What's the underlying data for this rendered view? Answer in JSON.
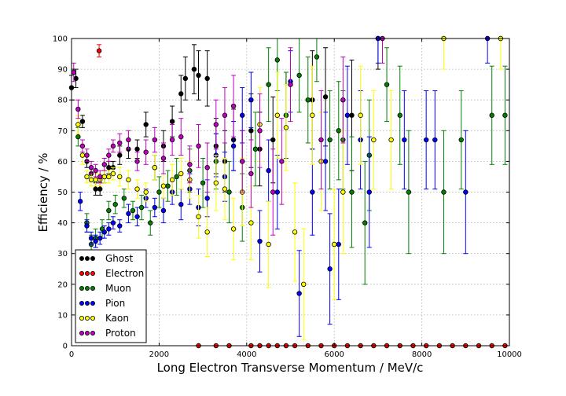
{
  "chart_data": {
    "type": "scatter",
    "xlabel": "Long Electron Transverse Momentum / MeV/c",
    "ylabel": "Efficiency / %",
    "xlim": [
      0,
      10000
    ],
    "ylim": [
      0,
      100
    ],
    "xticks": [
      0,
      2000,
      4000,
      6000,
      8000,
      10000
    ],
    "yticks": [
      0,
      10,
      20,
      30,
      40,
      50,
      60,
      70,
      80,
      90,
      100
    ],
    "grid": true,
    "legend_position": "lower-left",
    "error_bars": true,
    "series": [
      {
        "name": "Ghost",
        "color": "#000000",
        "points": [
          [
            0,
            84,
            4
          ],
          [
            100,
            87,
            3
          ],
          [
            250,
            73,
            2
          ],
          [
            350,
            60,
            2
          ],
          [
            450,
            56,
            2
          ],
          [
            550,
            51,
            2
          ],
          [
            650,
            51,
            2
          ],
          [
            750,
            55,
            2
          ],
          [
            850,
            58,
            2
          ],
          [
            950,
            58,
            2
          ],
          [
            1100,
            62,
            3
          ],
          [
            1300,
            64,
            3
          ],
          [
            1500,
            64,
            3
          ],
          [
            1700,
            72,
            4
          ],
          [
            1900,
            58,
            4
          ],
          [
            2100,
            65,
            5
          ],
          [
            2300,
            73,
            5
          ],
          [
            2500,
            82,
            6
          ],
          [
            2600,
            87,
            7
          ],
          [
            2800,
            90,
            8
          ],
          [
            2900,
            88,
            8
          ],
          [
            3100,
            87,
            9
          ],
          [
            3300,
            65,
            9
          ],
          [
            3500,
            60,
            10
          ],
          [
            3700,
            67,
            10
          ],
          [
            3900,
            60,
            10
          ],
          [
            4100,
            70,
            12
          ],
          [
            4300,
            64,
            12
          ],
          [
            4600,
            67,
            14
          ],
          [
            4900,
            75,
            14
          ],
          [
            5500,
            80,
            16
          ],
          [
            5800,
            81,
            16
          ],
          [
            6400,
            75,
            18
          ],
          [
            7000,
            100,
            10
          ]
        ]
      },
      {
        "name": "Electron",
        "color": "#ff0000",
        "points": [
          [
            630,
            96,
            2
          ],
          [
            2900,
            0,
            0
          ],
          [
            3300,
            0,
            0
          ],
          [
            3600,
            0,
            0
          ],
          [
            4100,
            0,
            0
          ],
          [
            4300,
            0,
            0
          ],
          [
            4500,
            0,
            0
          ],
          [
            4700,
            0,
            0
          ],
          [
            4900,
            0,
            0
          ],
          [
            5100,
            0,
            0
          ],
          [
            5400,
            0,
            0
          ],
          [
            5700,
            0,
            0
          ],
          [
            6000,
            0,
            0
          ],
          [
            6300,
            0,
            0
          ],
          [
            6600,
            0,
            0
          ],
          [
            6900,
            0,
            0
          ],
          [
            7200,
            0,
            0
          ],
          [
            7500,
            0,
            0
          ],
          [
            7800,
            0,
            0
          ],
          [
            8100,
            0,
            0
          ],
          [
            8400,
            0,
            0
          ],
          [
            8700,
            0,
            0
          ],
          [
            9000,
            0,
            0
          ],
          [
            9300,
            0,
            0
          ],
          [
            9600,
            0,
            0
          ],
          [
            9900,
            0,
            0
          ]
        ]
      },
      {
        "name": "Muon",
        "color": "#008000",
        "points": [
          [
            150,
            68,
            3
          ],
          [
            350,
            40,
            3
          ],
          [
            450,
            33,
            3
          ],
          [
            550,
            35,
            3
          ],
          [
            700,
            38,
            3
          ],
          [
            850,
            44,
            3
          ],
          [
            1000,
            46,
            3
          ],
          [
            1200,
            48,
            3
          ],
          [
            1400,
            44,
            3
          ],
          [
            1600,
            45,
            4
          ],
          [
            1800,
            40,
            4
          ],
          [
            2000,
            50,
            5
          ],
          [
            2200,
            52,
            5
          ],
          [
            2400,
            55,
            6
          ],
          [
            2700,
            57,
            7
          ],
          [
            3000,
            53,
            8
          ],
          [
            3300,
            60,
            9
          ],
          [
            3600,
            50,
            10
          ],
          [
            3900,
            45,
            11
          ],
          [
            4200,
            64,
            12
          ],
          [
            4500,
            85,
            12
          ],
          [
            4700,
            93,
            10
          ],
          [
            4900,
            75,
            14
          ],
          [
            5200,
            88,
            12
          ],
          [
            5400,
            80,
            14
          ],
          [
            5600,
            94,
            8
          ],
          [
            5900,
            67,
            16
          ],
          [
            6100,
            70,
            16
          ],
          [
            6200,
            67,
            16
          ],
          [
            6400,
            50,
            18
          ],
          [
            6700,
            40,
            20
          ],
          [
            6800,
            62,
            18
          ],
          [
            7200,
            85,
            12
          ],
          [
            7500,
            75,
            16
          ],
          [
            7700,
            50,
            20
          ],
          [
            8500,
            50,
            20
          ],
          [
            8900,
            67,
            16
          ],
          [
            9600,
            75,
            16
          ],
          [
            9900,
            75,
            16
          ]
        ]
      },
      {
        "name": "Pion",
        "color": "#0000ff",
        "points": [
          [
            200,
            47,
            3
          ],
          [
            350,
            39,
            2
          ],
          [
            450,
            35,
            2
          ],
          [
            550,
            34,
            2
          ],
          [
            650,
            35,
            2
          ],
          [
            750,
            37,
            2
          ],
          [
            850,
            38,
            2
          ],
          [
            950,
            40,
            2
          ],
          [
            1100,
            39,
            2
          ],
          [
            1300,
            43,
            3
          ],
          [
            1500,
            42,
            3
          ],
          [
            1700,
            48,
            3
          ],
          [
            1900,
            45,
            3
          ],
          [
            2100,
            44,
            4
          ],
          [
            2300,
            50,
            4
          ],
          [
            2500,
            46,
            5
          ],
          [
            2700,
            51,
            5
          ],
          [
            2900,
            45,
            6
          ],
          [
            3100,
            48,
            6
          ],
          [
            3300,
            62,
            7
          ],
          [
            3500,
            55,
            8
          ],
          [
            3700,
            65,
            8
          ],
          [
            3900,
            75,
            9
          ],
          [
            4100,
            80,
            9
          ],
          [
            4300,
            34,
            10
          ],
          [
            4500,
            57,
            10
          ],
          [
            4700,
            50,
            12
          ],
          [
            5000,
            86,
            10
          ],
          [
            5200,
            17,
            14
          ],
          [
            5500,
            50,
            14
          ],
          [
            5800,
            60,
            16
          ],
          [
            5900,
            25,
            18
          ],
          [
            6100,
            33,
            18
          ],
          [
            6300,
            75,
            16
          ],
          [
            6600,
            67,
            16
          ],
          [
            6800,
            50,
            18
          ],
          [
            7000,
            100,
            8
          ],
          [
            7600,
            67,
            16
          ],
          [
            8100,
            67,
            16
          ],
          [
            8300,
            67,
            16
          ],
          [
            9000,
            50,
            20
          ],
          [
            9500,
            100,
            8
          ]
        ]
      },
      {
        "name": "Kaon",
        "color": "#ffff00",
        "points": [
          [
            150,
            72,
            3
          ],
          [
            250,
            62,
            3
          ],
          [
            350,
            55,
            2
          ],
          [
            450,
            54,
            2
          ],
          [
            550,
            54,
            2
          ],
          [
            650,
            54,
            2
          ],
          [
            750,
            55,
            2
          ],
          [
            850,
            55,
            2
          ],
          [
            950,
            56,
            2
          ],
          [
            1100,
            55,
            3
          ],
          [
            1300,
            54,
            3
          ],
          [
            1500,
            51,
            3
          ],
          [
            1700,
            50,
            3
          ],
          [
            1900,
            58,
            4
          ],
          [
            2100,
            52,
            4
          ],
          [
            2300,
            54,
            5
          ],
          [
            2500,
            56,
            5
          ],
          [
            2700,
            54,
            6
          ],
          [
            2900,
            42,
            7
          ],
          [
            3100,
            37,
            8
          ],
          [
            3300,
            53,
            9
          ],
          [
            3500,
            51,
            10
          ],
          [
            3700,
            38,
            10
          ],
          [
            3900,
            50,
            11
          ],
          [
            4100,
            40,
            12
          ],
          [
            4300,
            72,
            12
          ],
          [
            4500,
            33,
            14
          ],
          [
            4700,
            75,
            14
          ],
          [
            4900,
            71,
            14
          ],
          [
            5100,
            37,
            16
          ],
          [
            5300,
            20,
            18
          ],
          [
            5500,
            75,
            16
          ],
          [
            5700,
            60,
            16
          ],
          [
            6000,
            33,
            18
          ],
          [
            6200,
            50,
            20
          ],
          [
            6600,
            75,
            16
          ],
          [
            6900,
            67,
            16
          ],
          [
            7300,
            67,
            16
          ],
          [
            8500,
            100,
            10
          ],
          [
            9800,
            100,
            10
          ]
        ]
      },
      {
        "name": "Proton",
        "color": "#bf00bf",
        "points": [
          [
            50,
            89,
            3
          ],
          [
            150,
            77,
            3
          ],
          [
            250,
            65,
            2
          ],
          [
            350,
            62,
            2
          ],
          [
            450,
            58,
            2
          ],
          [
            550,
            57,
            2
          ],
          [
            650,
            55,
            2
          ],
          [
            750,
            59,
            2
          ],
          [
            850,
            62,
            2
          ],
          [
            950,
            65,
            2
          ],
          [
            1100,
            66,
            3
          ],
          [
            1300,
            67,
            3
          ],
          [
            1500,
            60,
            3
          ],
          [
            1700,
            63,
            4
          ],
          [
            1900,
            67,
            4
          ],
          [
            2100,
            61,
            5
          ],
          [
            2300,
            67,
            5
          ],
          [
            2500,
            68,
            6
          ],
          [
            2700,
            59,
            6
          ],
          [
            2900,
            65,
            7
          ],
          [
            3100,
            58,
            8
          ],
          [
            3300,
            72,
            8
          ],
          [
            3500,
            75,
            9
          ],
          [
            3700,
            78,
            10
          ],
          [
            3900,
            60,
            10
          ],
          [
            4100,
            56,
            11
          ],
          [
            4300,
            70,
            12
          ],
          [
            4600,
            50,
            14
          ],
          [
            4800,
            60,
            14
          ],
          [
            5000,
            85,
            12
          ],
          [
            5700,
            67,
            16
          ],
          [
            6200,
            80,
            14
          ],
          [
            7100,
            100,
            8
          ]
        ]
      }
    ]
  }
}
